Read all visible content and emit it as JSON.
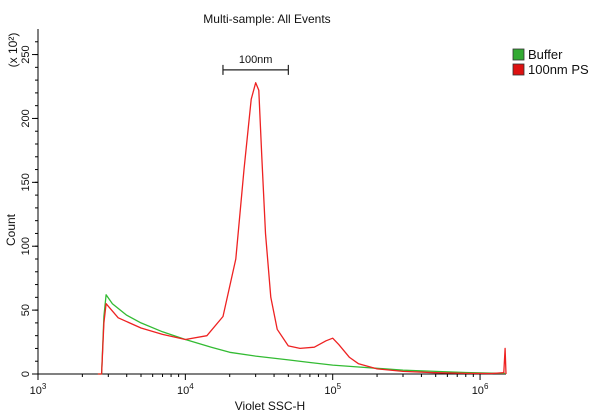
{
  "chart_data": {
    "type": "line",
    "title": "Multi-sample: All Events",
    "xlabel": "Violet SSC-H",
    "ylabel": "Count",
    "y_multiplier": "(x 10²)",
    "x_scale": "log",
    "xlim": [
      1000,
      1500000
    ],
    "ylim": [
      0,
      270
    ],
    "y_ticks": [
      0,
      50,
      100,
      150,
      200,
      250
    ],
    "x_ticks": [
      {
        "value": 1000,
        "base": "10",
        "exp": "3"
      },
      {
        "value": 10000,
        "base": "10",
        "exp": "4"
      },
      {
        "value": 100000,
        "base": "10",
        "exp": "5"
      },
      {
        "value": 1000000,
        "base": "10",
        "exp": "6"
      }
    ],
    "annotation": {
      "label": "100nm",
      "x_range": [
        18000,
        50000
      ],
      "y": 238
    },
    "legend_position": "right, outside plot, top",
    "series": [
      {
        "name": "Buffer",
        "color": "#33bb33",
        "legend_color": "#33aa33",
        "x": [
          2550,
          2700,
          2800,
          2900,
          3200,
          4000,
          5000,
          7000,
          10000,
          15000,
          20000,
          30000,
          50000,
          70000,
          100000,
          150000,
          200000,
          300000,
          500000,
          800000,
          1200000,
          1480000
        ],
        "y": [
          0,
          0,
          45,
          62,
          55,
          46,
          40,
          33,
          27,
          21,
          17,
          14,
          11,
          9,
          7,
          5.5,
          4.5,
          3,
          2,
          1.2,
          0.7,
          0.5
        ]
      },
      {
        "name": "100nm PS",
        "color": "#ee2222",
        "legend_color": "#dd1111",
        "x": [
          2550,
          2700,
          2800,
          2900,
          3500,
          5000,
          7000,
          10000,
          14000,
          18000,
          22000,
          25000,
          28000,
          30000,
          31500,
          33000,
          35000,
          38000,
          42000,
          50000,
          60000,
          75000,
          90000,
          100000,
          110000,
          130000,
          150000,
          200000,
          300000,
          500000,
          800000,
          1200000,
          1450000,
          1480000,
          1500000
        ],
        "y": [
          0,
          0,
          40,
          55,
          44,
          36,
          31,
          27,
          30,
          45,
          90,
          160,
          215,
          228,
          222,
          170,
          110,
          60,
          35,
          22,
          20,
          21,
          26,
          28,
          23,
          13,
          8,
          4,
          2,
          1,
          0.5,
          0.4,
          1,
          20,
          0
        ]
      }
    ]
  }
}
